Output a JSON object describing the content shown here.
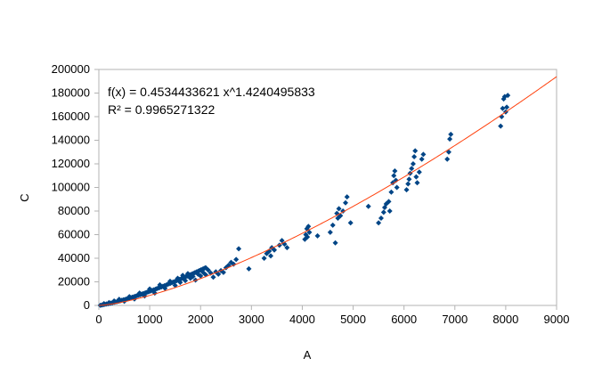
{
  "chart_data": {
    "type": "scatter",
    "title": "",
    "xlabel": "A",
    "ylabel": "C",
    "xlim": [
      0,
      9000
    ],
    "ylim": [
      0,
      200000
    ],
    "x_ticks": [
      "0",
      "1000",
      "2000",
      "3000",
      "4000",
      "5000",
      "6000",
      "7000",
      "8000",
      "9000"
    ],
    "y_ticks": [
      "0",
      "20000",
      "40000",
      "60000",
      "80000",
      "100000",
      "120000",
      "140000",
      "160000",
      "180000",
      "200000"
    ],
    "grid": false,
    "legend": "none",
    "annotation": {
      "equation": "f(x) = 0.4534433621 x^1.4240495833",
      "r_squared": "R² = 0.9965271322"
    },
    "trendline": {
      "type": "power",
      "coefficient": 0.4534433621,
      "exponent": 1.4240495833,
      "x_range": [
        0,
        9000
      ],
      "color": "#ff420e"
    },
    "series": [
      {
        "color": "#004586",
        "points": [
          [
            30,
            100
          ],
          [
            60,
            400
          ],
          [
            90,
            650
          ],
          [
            120,
            900
          ],
          [
            150,
            1200
          ],
          [
            180,
            1400
          ],
          [
            210,
            1700
          ],
          [
            240,
            2000
          ],
          [
            270,
            2300
          ],
          [
            300,
            2600
          ],
          [
            330,
            2900
          ],
          [
            360,
            3200
          ],
          [
            390,
            3600
          ],
          [
            420,
            3900
          ],
          [
            450,
            4300
          ],
          [
            480,
            4700
          ],
          [
            510,
            5000
          ],
          [
            540,
            5400
          ],
          [
            570,
            5800
          ],
          [
            600,
            6200
          ],
          [
            630,
            6600
          ],
          [
            660,
            7000
          ],
          [
            690,
            7400
          ],
          [
            720,
            7800
          ],
          [
            750,
            8200
          ],
          [
            780,
            8700
          ],
          [
            810,
            9100
          ],
          [
            840,
            9500
          ],
          [
            870,
            10000
          ],
          [
            900,
            10400
          ],
          [
            930,
            10900
          ],
          [
            960,
            11300
          ],
          [
            990,
            11800
          ],
          [
            1020,
            12300
          ],
          [
            1050,
            12700
          ],
          [
            1080,
            13200
          ],
          [
            1110,
            13700
          ],
          [
            1140,
            14200
          ],
          [
            1170,
            14700
          ],
          [
            1200,
            15200
          ],
          [
            1230,
            15700
          ],
          [
            1260,
            16200
          ],
          [
            1290,
            16700
          ],
          [
            1320,
            17200
          ],
          [
            1350,
            17800
          ],
          [
            1380,
            18300
          ],
          [
            1410,
            18800
          ],
          [
            1440,
            19400
          ],
          [
            1470,
            19900
          ],
          [
            1500,
            20400
          ],
          [
            1530,
            21000
          ],
          [
            1560,
            21500
          ],
          [
            1590,
            22100
          ],
          [
            1620,
            22600
          ],
          [
            1650,
            23200
          ],
          [
            1680,
            23800
          ],
          [
            1710,
            24300
          ],
          [
            1740,
            24900
          ],
          [
            1770,
            25500
          ],
          [
            1800,
            26000
          ],
          [
            1830,
            26600
          ],
          [
            1860,
            27200
          ],
          [
            1890,
            27800
          ],
          [
            1920,
            28400
          ],
          [
            1950,
            29000
          ],
          [
            1980,
            29600
          ],
          [
            2010,
            30200
          ],
          [
            2040,
            30800
          ],
          [
            2070,
            31400
          ],
          [
            2100,
            32000
          ],
          [
            100,
            1500
          ],
          [
            200,
            2500
          ],
          [
            300,
            3800
          ],
          [
            400,
            5200
          ],
          [
            500,
            3500
          ],
          [
            600,
            7500
          ],
          [
            700,
            5500
          ],
          [
            800,
            10500
          ],
          [
            900,
            8000
          ],
          [
            1000,
            14000
          ],
          [
            1100,
            10500
          ],
          [
            1200,
            17500
          ],
          [
            1300,
            14500
          ],
          [
            1400,
            20500
          ],
          [
            1500,
            17000
          ],
          [
            1550,
            23000
          ],
          [
            1600,
            19500
          ],
          [
            1650,
            25500
          ],
          [
            1700,
            21000
          ],
          [
            1750,
            27000
          ],
          [
            1800,
            23000
          ],
          [
            1850,
            24500
          ],
          [
            1900,
            21500
          ],
          [
            1950,
            26500
          ],
          [
            2000,
            25000
          ],
          [
            2050,
            28000
          ],
          [
            2100,
            26000
          ],
          [
            2150,
            30000
          ],
          [
            2200,
            27500
          ],
          [
            2250,
            24000
          ],
          [
            2300,
            28500
          ],
          [
            2350,
            26500
          ],
          [
            2400,
            29500
          ],
          [
            2450,
            28000
          ],
          [
            2500,
            32000
          ],
          [
            2550,
            34000
          ],
          [
            2600,
            36500
          ],
          [
            2650,
            35000
          ],
          [
            2700,
            39000
          ],
          [
            2750,
            48000
          ],
          [
            2950,
            31000
          ],
          [
            3250,
            40000
          ],
          [
            3300,
            44000
          ],
          [
            3350,
            46000
          ],
          [
            3380,
            42000
          ],
          [
            3400,
            49000
          ],
          [
            3450,
            47000
          ],
          [
            3550,
            51000
          ],
          [
            3600,
            55000
          ],
          [
            3650,
            52000
          ],
          [
            3700,
            49000
          ],
          [
            4050,
            56000
          ],
          [
            4070,
            60000
          ],
          [
            4090,
            65000
          ],
          [
            4100,
            58000
          ],
          [
            4120,
            67000
          ],
          [
            4140,
            62000
          ],
          [
            4300,
            59000
          ],
          [
            4550,
            62000
          ],
          [
            4600,
            68000
          ],
          [
            4650,
            53000
          ],
          [
            4680,
            78000
          ],
          [
            4700,
            74000
          ],
          [
            4720,
            82000
          ],
          [
            4750,
            76000
          ],
          [
            4800,
            80000
          ],
          [
            4850,
            87000
          ],
          [
            4880,
            92000
          ],
          [
            4950,
            70000
          ],
          [
            5300,
            84000
          ],
          [
            5500,
            70000
          ],
          [
            5550,
            74000
          ],
          [
            5600,
            79000
          ],
          [
            5620,
            83000
          ],
          [
            5650,
            86000
          ],
          [
            5700,
            88000
          ],
          [
            5720,
            80000
          ],
          [
            5750,
            96000
          ],
          [
            5780,
            104000
          ],
          [
            5800,
            110000
          ],
          [
            5820,
            114000
          ],
          [
            5840,
            106000
          ],
          [
            5860,
            100000
          ],
          [
            6050,
            98000
          ],
          [
            6080,
            103000
          ],
          [
            6100,
            107000
          ],
          [
            6120,
            112000
          ],
          [
            6150,
            116000
          ],
          [
            6180,
            120000
          ],
          [
            6200,
            126000
          ],
          [
            6220,
            131000
          ],
          [
            6240,
            109000
          ],
          [
            6260,
            104000
          ],
          [
            6300,
            113000
          ],
          [
            6350,
            124000
          ],
          [
            6380,
            128000
          ],
          [
            6850,
            124000
          ],
          [
            6880,
            130000
          ],
          [
            6900,
            141000
          ],
          [
            6920,
            145000
          ],
          [
            7900,
            152000
          ],
          [
            7920,
            160000
          ],
          [
            7940,
            167000
          ],
          [
            7960,
            175000
          ],
          [
            7980,
            177000
          ],
          [
            8000,
            164000
          ],
          [
            8020,
            168000
          ],
          [
            8040,
            178000
          ]
        ]
      }
    ]
  }
}
